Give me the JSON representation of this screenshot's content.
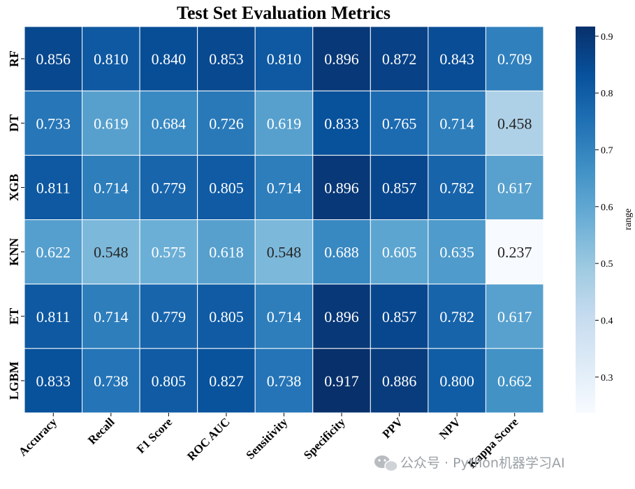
{
  "chart_data": {
    "type": "heatmap",
    "title": "Test Set Evaluation Metrics",
    "columns": [
      "Accuracy",
      "Recall",
      "F1 Score",
      "ROC AUC",
      "Sensitivity",
      "Specificity",
      "PPV",
      "NPV",
      "Kappa Score"
    ],
    "rows": [
      "RF",
      "DT",
      "XGB",
      "KNN",
      "ET",
      "LGBM"
    ],
    "values": [
      [
        0.856,
        0.81,
        0.84,
        0.853,
        0.81,
        0.896,
        0.872,
        0.843,
        0.709
      ],
      [
        0.733,
        0.619,
        0.684,
        0.726,
        0.619,
        0.833,
        0.765,
        0.714,
        0.458
      ],
      [
        0.811,
        0.714,
        0.779,
        0.805,
        0.714,
        0.896,
        0.857,
        0.782,
        0.617
      ],
      [
        0.622,
        0.548,
        0.575,
        0.618,
        0.548,
        0.688,
        0.605,
        0.635,
        0.237
      ],
      [
        0.811,
        0.714,
        0.779,
        0.805,
        0.714,
        0.896,
        0.857,
        0.782,
        0.617
      ],
      [
        0.833,
        0.738,
        0.805,
        0.827,
        0.738,
        0.917,
        0.886,
        0.8,
        0.662
      ]
    ],
    "value_format": "3 decimals",
    "colormap": "Blues",
    "vmin": 0.237,
    "vmax": 0.917,
    "colorbar": {
      "label": "range",
      "ticks": [
        0.3,
        0.4,
        0.5,
        0.6,
        0.7,
        0.8,
        0.9
      ]
    }
  },
  "watermark": "公众号 · Python机器学习AI"
}
